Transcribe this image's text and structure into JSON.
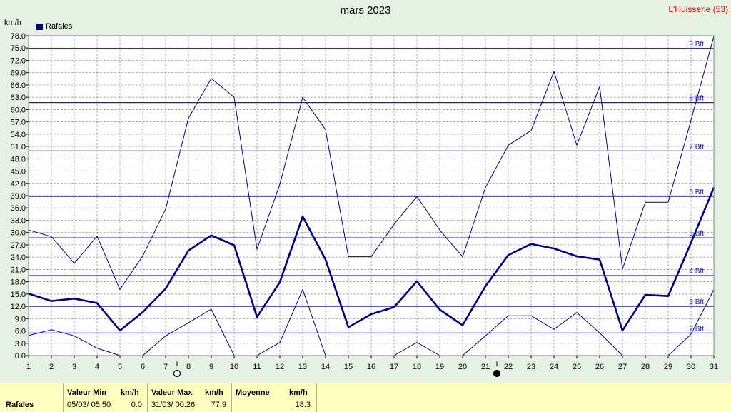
{
  "header": {
    "title": "mars 2023",
    "station": "L'Huisserie (53)",
    "unit": "km/h",
    "legend_label": "Rafales"
  },
  "colors": {
    "background": "#e4f1e3",
    "plot_background": "#ffffff",
    "grid": "#8c8c8c",
    "series": "#000080",
    "beaufort_line": "#1a1acc",
    "beaufort_text": "#1a1acc",
    "station_text": "#d00000",
    "footer_background": "#ffffc0"
  },
  "chart_data": {
    "type": "line",
    "title": "mars 2023",
    "ylabel": "km/h",
    "xlim": [
      1,
      31
    ],
    "ylim": [
      0,
      78
    ],
    "grid": true,
    "legend_position": "top-left",
    "x": [
      1,
      2,
      3,
      4,
      5,
      6,
      7,
      8,
      9,
      10,
      11,
      12,
      13,
      14,
      15,
      16,
      17,
      18,
      19,
      20,
      21,
      22,
      23,
      24,
      25,
      26,
      27,
      28,
      29,
      30,
      31
    ],
    "x_ticks": [
      "1",
      "2",
      "3",
      "4",
      "5",
      "6",
      "7",
      "8",
      "9",
      "10",
      "11",
      "12",
      "13",
      "14",
      "15",
      "16",
      "17",
      "18",
      "19",
      "20",
      "21",
      "22",
      "23",
      "24",
      "25",
      "26",
      "27",
      "28",
      "29",
      "30",
      "31"
    ],
    "y_ticks": [
      "0.0",
      "3.0",
      "6.0",
      "9.0",
      "12.0",
      "15.0",
      "18.0",
      "21.0",
      "24.0",
      "27.0",
      "30.0",
      "33.0",
      "36.0",
      "39.0",
      "42.0",
      "45.0",
      "48.0",
      "51.0",
      "54.0",
      "57.0",
      "60.0",
      "63.0",
      "66.0",
      "69.0",
      "72.0",
      "75.0",
      "78.0"
    ],
    "series": [
      {
        "name": "Rafales",
        "role": "mean",
        "values": [
          15.1,
          13.3,
          13.9,
          12.8,
          6.1,
          10.6,
          16.3,
          25.6,
          29.3,
          26.9,
          9.4,
          17.9,
          33.9,
          23.4,
          6.9,
          10.1,
          11.8,
          18.1,
          11.2,
          7.4,
          16.9,
          24.5,
          27.2,
          26.1,
          24.2,
          23.4,
          6.1,
          14.8,
          14.5,
          27.5,
          41.0
        ]
      },
      {
        "name": "",
        "role": "max",
        "values": [
          30.6,
          29.0,
          22.5,
          29.1,
          16.1,
          24.3,
          35.7,
          57.9,
          67.6,
          63.0,
          25.9,
          41.8,
          63.0,
          55.1,
          24.1,
          24.1,
          32.0,
          38.8,
          30.6,
          24.1,
          41.0,
          51.3,
          54.9,
          69.3,
          51.3,
          65.6,
          21.1,
          37.4,
          37.4,
          57.4,
          77.9
        ]
      },
      {
        "name": "",
        "role": "min",
        "values": [
          4.9,
          6.3,
          4.8,
          1.8,
          0.0,
          0.0,
          4.8,
          8.0,
          11.3,
          0.0,
          0.0,
          3.2,
          16.1,
          0.0,
          null,
          null,
          0.0,
          3.2,
          0.0,
          0.0,
          4.8,
          9.7,
          9.7,
          6.4,
          10.5,
          5.5,
          0.0,
          null,
          0.0,
          5.2,
          16.1
        ]
      }
    ],
    "beaufort_levels": [
      {
        "label": "2 Bft",
        "value": 5.5
      },
      {
        "label": "3 Bft",
        "value": 12.0
      },
      {
        "label": "4 Bft",
        "value": 19.5
      },
      {
        "label": "5 Bft",
        "value": 28.7
      },
      {
        "label": "6 Bft",
        "value": 38.8
      },
      {
        "label": "7 Bft",
        "value": 49.9
      },
      {
        "label": "8 Bft",
        "value": 61.7
      },
      {
        "label": "9 Bft",
        "value": 74.9
      }
    ],
    "moon_phases": [
      {
        "type": "full-moon",
        "day": 7.5
      },
      {
        "type": "new-moon",
        "day": 21.5
      }
    ]
  },
  "footer": {
    "row_label": "Rafales",
    "min": {
      "header": "Valeur Min",
      "unit": "km/h",
      "datetime": "05/03/  05:50",
      "value": "0.0"
    },
    "max": {
      "header": "Valeur Max",
      "unit": "km/h",
      "datetime": "31/03/  00:26",
      "value": "77.9"
    },
    "mean": {
      "header": "Moyenne",
      "unit": "km/h",
      "value": "18.3"
    }
  }
}
